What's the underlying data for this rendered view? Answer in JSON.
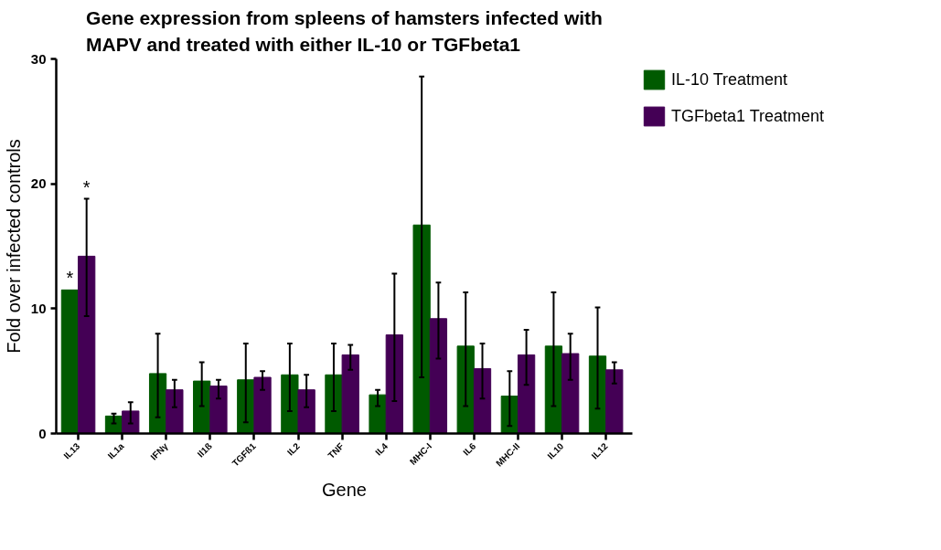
{
  "chart_data": {
    "type": "bar",
    "title": "Gene expression from spleens of hamsters infected with MAPV and treated with either IL-10 or TGFbeta1",
    "xlabel": "Gene",
    "ylabel": "Fold over infected controls",
    "categories": [
      "IL13",
      "IL1a",
      "IFNγ",
      "Il1ß",
      "TGFß1",
      "IL2",
      "TNF",
      "IL4",
      "MHC-I",
      "IL6",
      "MHC-II",
      "IL10",
      "IL12"
    ],
    "series": [
      {
        "name": "IL-10 Treatment",
        "color": "#005a00",
        "values": [
          11.5,
          1.4,
          4.8,
          4.2,
          4.3,
          4.7,
          4.7,
          3.1,
          16.7,
          7.0,
          3.0,
          7.0,
          6.2
        ],
        "errors": [
          null,
          [
            0.8,
            1.6
          ],
          [
            1.3,
            8.0
          ],
          [
            2.2,
            5.7
          ],
          [
            0.9,
            7.2
          ],
          [
            1.8,
            7.2
          ],
          [
            1.8,
            7.2
          ],
          [
            2.2,
            3.5
          ],
          [
            4.5,
            28.6
          ],
          [
            2.2,
            11.3
          ],
          [
            0.6,
            5.0
          ],
          [
            2.2,
            11.3
          ],
          [
            2.0,
            10.1
          ]
        ]
      },
      {
        "name": "TGFbeta1 Treatment",
        "color": "#440055",
        "values": [
          14.2,
          1.8,
          3.5,
          3.8,
          4.5,
          3.5,
          6.3,
          7.9,
          9.2,
          5.2,
          6.3,
          6.4,
          5.1
        ],
        "errors": [
          [
            9.4,
            18.8
          ],
          [
            0.8,
            2.5
          ],
          [
            2.1,
            4.3
          ],
          [
            2.8,
            4.3
          ],
          [
            3.5,
            5.0
          ],
          [
            2.1,
            4.7
          ],
          [
            5.1,
            7.1
          ],
          [
            2.6,
            12.8
          ],
          [
            6.0,
            12.1
          ],
          [
            2.8,
            7.2
          ],
          [
            3.9,
            8.3
          ],
          [
            4.3,
            8.0
          ],
          [
            4.0,
            5.7
          ]
        ]
      }
    ],
    "ylim": [
      0,
      30
    ],
    "yticks": [
      0,
      10,
      20,
      30
    ],
    "grid": false,
    "legend": "top right",
    "annotations": [
      {
        "text": "*",
        "x": "IL13",
        "y": 11.5
      },
      "*"
    ]
  }
}
